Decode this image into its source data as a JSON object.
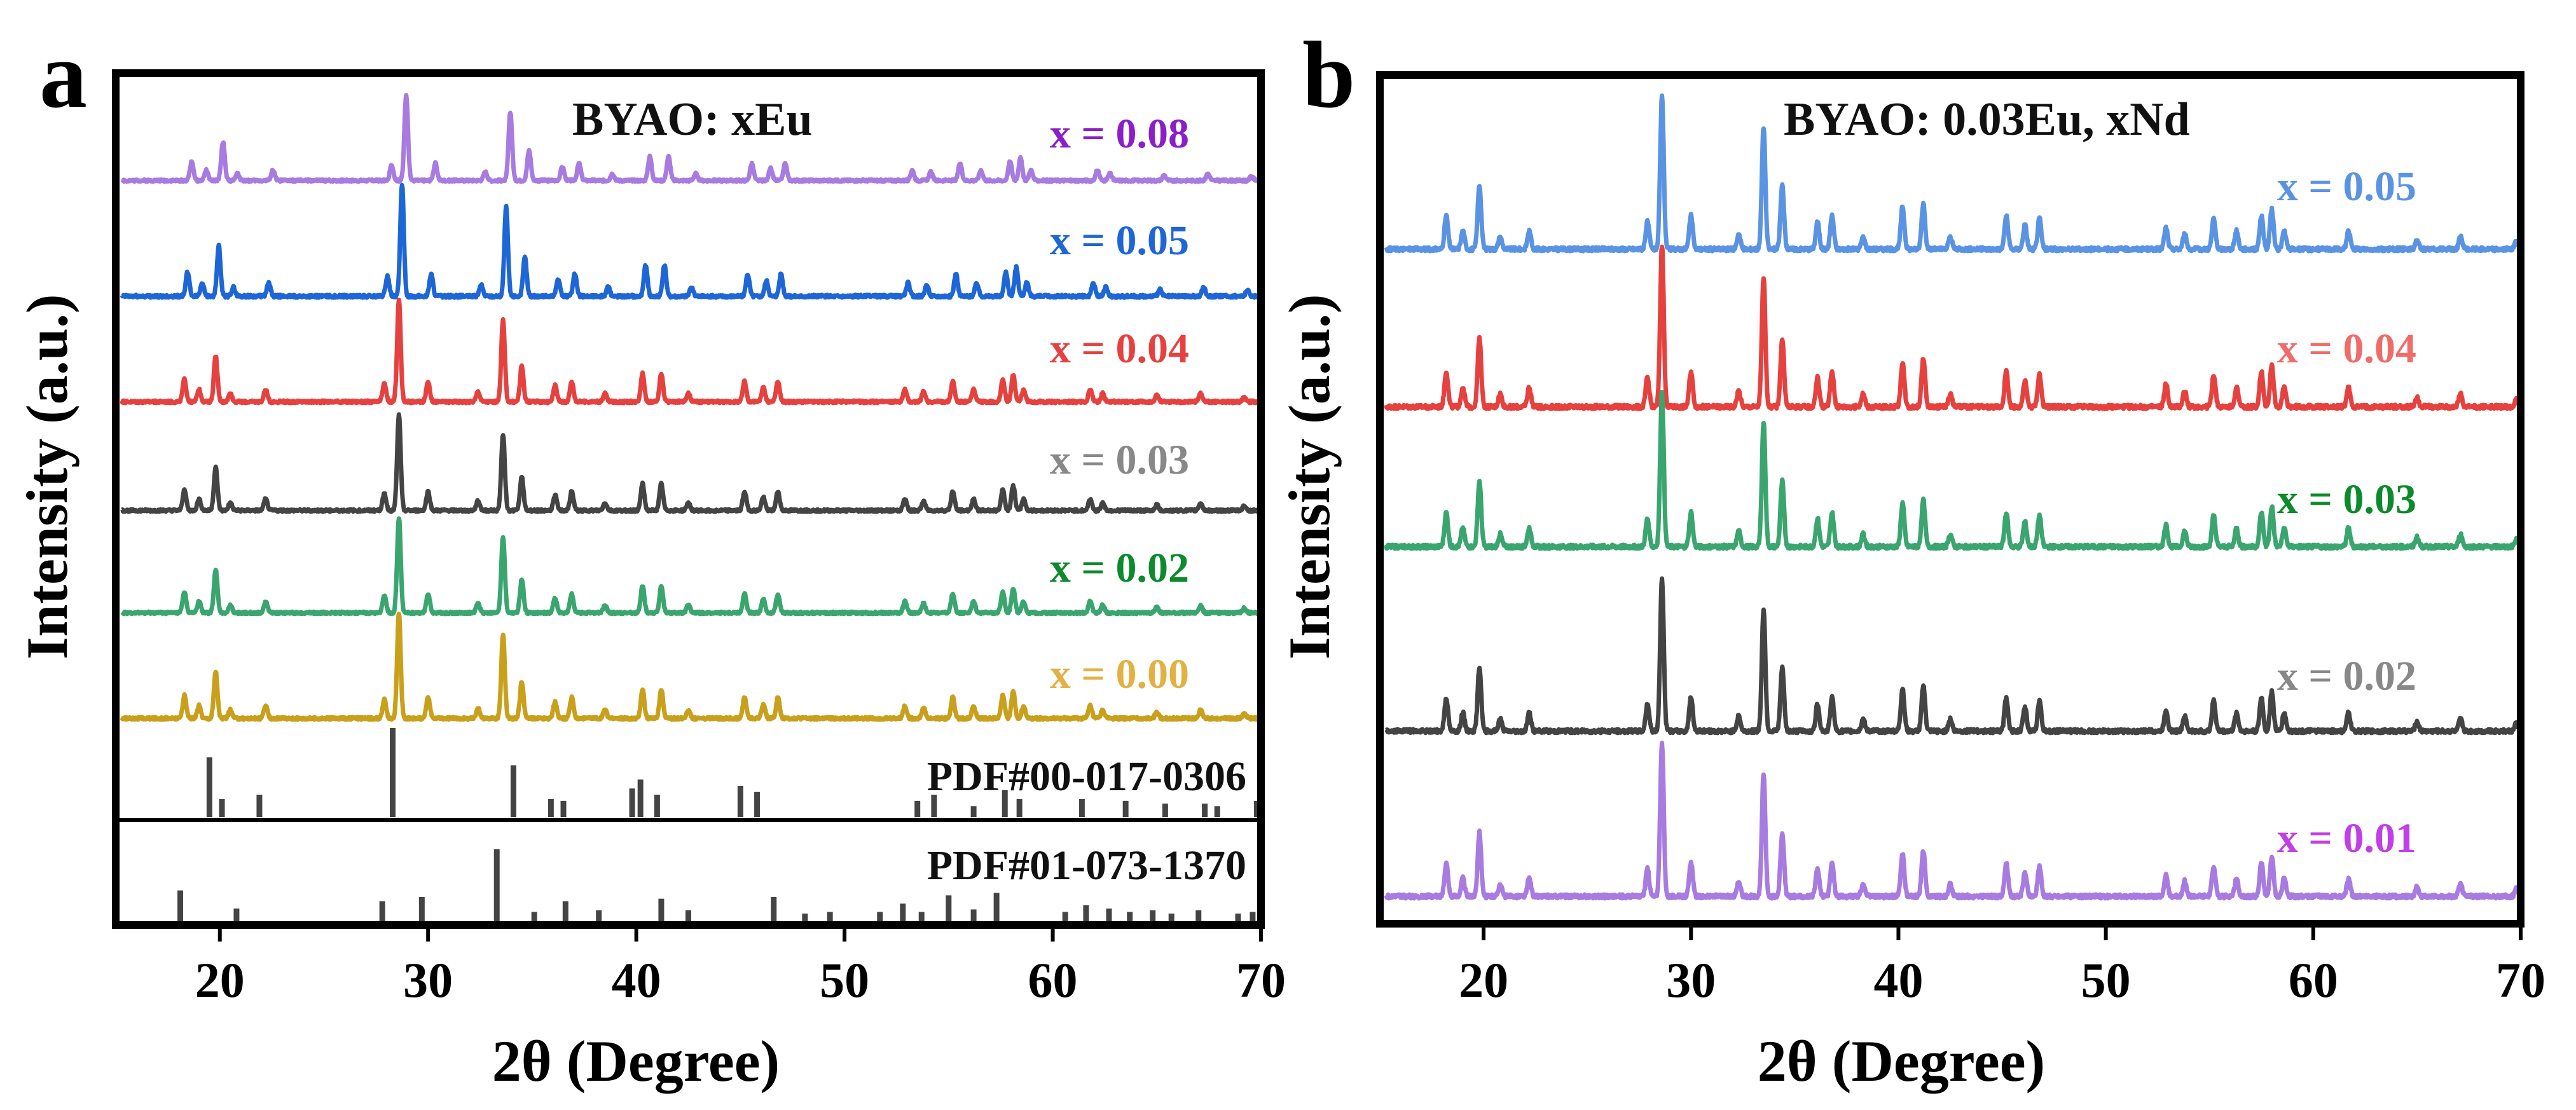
{
  "colors": {
    "purple": "#a77be0",
    "blue": "#1e66d6",
    "red": "#e5413f",
    "dark": "#444444",
    "green": "#3aa56f",
    "gold": "#c9a01c",
    "sky": "#5b93e3",
    "ref": "#444444",
    "label_purple": "#8a1fc9",
    "label_green": "#0c8a2c",
    "label_gray": "#888888",
    "label_red_a": "#e5413f",
    "label_red_b": "#ee6c6a",
    "label_gold": "#e1b243",
    "label_magenta": "#c23ee6"
  },
  "chart_data": [
    {
      "panel": "a",
      "type": "line",
      "title": "BYAO: xEu",
      "xlabel": "2θ (Degree)",
      "ylabel": "Intensity (a.u.)",
      "xlim": [
        15,
        70
      ],
      "xticks": [
        20,
        30,
        40,
        50,
        60,
        70
      ],
      "peaks": [
        [
          18.3,
          0.22
        ],
        [
          19.0,
          0.12
        ],
        [
          19.8,
          0.45
        ],
        [
          20.5,
          0.08
        ],
        [
          22.2,
          0.12
        ],
        [
          27.9,
          0.18
        ],
        [
          28.6,
          1.0
        ],
        [
          30.0,
          0.2
        ],
        [
          32.4,
          0.1
        ],
        [
          33.6,
          0.8
        ],
        [
          34.5,
          0.35
        ],
        [
          36.1,
          0.16
        ],
        [
          36.9,
          0.2
        ],
        [
          38.5,
          0.08
        ],
        [
          40.3,
          0.28
        ],
        [
          41.2,
          0.28
        ],
        [
          42.5,
          0.08
        ],
        [
          45.2,
          0.2
        ],
        [
          46.1,
          0.14
        ],
        [
          46.8,
          0.2
        ],
        [
          52.9,
          0.12
        ],
        [
          53.8,
          0.1
        ],
        [
          55.2,
          0.2
        ],
        [
          56.2,
          0.12
        ],
        [
          57.6,
          0.22
        ],
        [
          58.1,
          0.26
        ],
        [
          58.6,
          0.12
        ],
        [
          61.8,
          0.12
        ],
        [
          62.4,
          0.08
        ],
        [
          65.0,
          0.06
        ],
        [
          67.1,
          0.08
        ],
        [
          69.2,
          0.05
        ]
      ],
      "series": [
        {
          "name": "x = 0.08",
          "color_key": "purple",
          "label_color_key": "label_purple",
          "shift": 0.35
        },
        {
          "name": "x = 0.05",
          "color_key": "blue",
          "label_color_key": "blue",
          "shift": 0.15
        },
        {
          "name": "x = 0.04",
          "color_key": "red",
          "label_color_key": "label_red_a",
          "shift": 0.0
        },
        {
          "name": "x = 0.03",
          "color_key": "dark",
          "label_color_key": "label_gray",
          "shift": 0.0
        },
        {
          "name": "x = 0.02",
          "color_key": "green",
          "label_color_key": "label_green",
          "shift": 0.0
        },
        {
          "name": "x = 0.00",
          "color_key": "gold",
          "label_color_key": "label_gold",
          "shift": 0.0
        }
      ],
      "references": [
        {
          "name": "PDF#00-017-0306",
          "lines": [
            [
              19.5,
              0.67
            ],
            [
              20.1,
              0.2
            ],
            [
              21.9,
              0.25
            ],
            [
              28.3,
              1.0
            ],
            [
              34.1,
              0.58
            ],
            [
              35.9,
              0.2
            ],
            [
              36.5,
              0.18
            ],
            [
              39.8,
              0.32
            ],
            [
              40.2,
              0.42
            ],
            [
              41.0,
              0.25
            ],
            [
              45.0,
              0.35
            ],
            [
              45.8,
              0.28
            ],
            [
              53.5,
              0.18
            ],
            [
              54.3,
              0.25
            ],
            [
              56.2,
              0.12
            ],
            [
              57.7,
              0.3
            ],
            [
              58.4,
              0.2
            ],
            [
              61.4,
              0.2
            ],
            [
              63.5,
              0.18
            ],
            [
              65.4,
              0.15
            ],
            [
              67.3,
              0.15
            ],
            [
              67.9,
              0.12
            ],
            [
              69.8,
              0.18
            ]
          ]
        },
        {
          "name": "PDF#01-073-1370",
          "lines": [
            [
              18.1,
              0.38
            ],
            [
              20.8,
              0.16
            ],
            [
              27.8,
              0.25
            ],
            [
              29.7,
              0.3
            ],
            [
              33.3,
              0.88
            ],
            [
              35.1,
              0.12
            ],
            [
              36.6,
              0.25
            ],
            [
              38.2,
              0.14
            ],
            [
              41.2,
              0.28
            ],
            [
              42.5,
              0.14
            ],
            [
              46.6,
              0.3
            ],
            [
              48.1,
              0.1
            ],
            [
              49.3,
              0.12
            ],
            [
              51.7,
              0.12
            ],
            [
              52.8,
              0.22
            ],
            [
              53.7,
              0.12
            ],
            [
              55.0,
              0.32
            ],
            [
              56.2,
              0.15
            ],
            [
              57.3,
              0.35
            ],
            [
              60.6,
              0.12
            ],
            [
              61.6,
              0.2
            ],
            [
              62.7,
              0.16
            ],
            [
              63.7,
              0.12
            ],
            [
              64.8,
              0.14
            ],
            [
              65.7,
              0.1
            ],
            [
              67.0,
              0.14
            ],
            [
              68.9,
              0.1
            ],
            [
              69.6,
              0.12
            ]
          ]
        }
      ]
    },
    {
      "panel": "b",
      "type": "line",
      "title": "BYAO: 0.03Eu, xNd",
      "xlabel": "2θ (Degree)",
      "ylabel": "Intensity (a.u.)",
      "xlim": [
        15,
        70
      ],
      "xticks": [
        20,
        30,
        40,
        50,
        60,
        70
      ],
      "peaks": [
        [
          18.2,
          0.22
        ],
        [
          19.0,
          0.12
        ],
        [
          19.8,
          0.42
        ],
        [
          20.8,
          0.08
        ],
        [
          22.2,
          0.12
        ],
        [
          27.9,
          0.18
        ],
        [
          28.6,
          1.0
        ],
        [
          30.0,
          0.22
        ],
        [
          32.3,
          0.1
        ],
        [
          33.5,
          0.8
        ],
        [
          34.4,
          0.42
        ],
        [
          36.1,
          0.18
        ],
        [
          36.8,
          0.22
        ],
        [
          38.3,
          0.08
        ],
        [
          40.2,
          0.28
        ],
        [
          41.2,
          0.3
        ],
        [
          42.5,
          0.08
        ],
        [
          45.2,
          0.22
        ],
        [
          46.1,
          0.16
        ],
        [
          46.8,
          0.2
        ],
        [
          52.9,
          0.14
        ],
        [
          53.8,
          0.1
        ],
        [
          55.2,
          0.2
        ],
        [
          56.3,
          0.12
        ],
        [
          57.5,
          0.22
        ],
        [
          58.0,
          0.26
        ],
        [
          58.6,
          0.12
        ],
        [
          61.7,
          0.12
        ],
        [
          65.0,
          0.06
        ],
        [
          67.1,
          0.08
        ],
        [
          69.8,
          0.05
        ]
      ],
      "series": [
        {
          "name": "x = 0.05",
          "color_key": "sky",
          "label_color_key": "sky",
          "shift": 0.0
        },
        {
          "name": "x = 0.04",
          "color_key": "red",
          "label_color_key": "label_red_b",
          "shift": 0.0
        },
        {
          "name": "x = 0.03",
          "color_key": "green",
          "label_color_key": "label_green",
          "shift": 0.0
        },
        {
          "name": "x = 0.02",
          "color_key": "dark",
          "label_color_key": "label_gray",
          "shift": 0.0
        },
        {
          "name": "x = 0.01",
          "color_key": "purple",
          "label_color_key": "label_magenta",
          "shift": 0.0
        }
      ],
      "references": []
    }
  ]
}
